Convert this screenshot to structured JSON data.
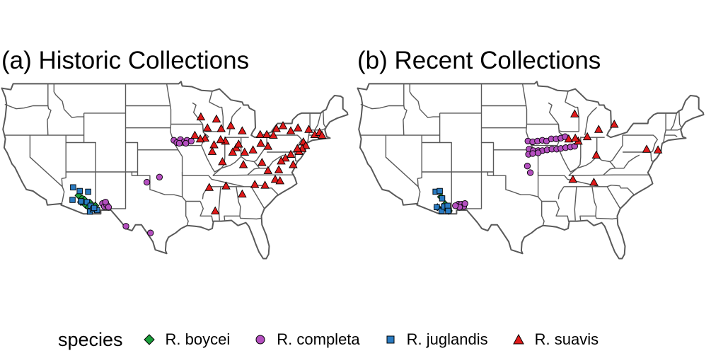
{
  "panels": [
    {
      "title": "(a) Historic Collections"
    },
    {
      "title": "(b) Recent Collections"
    }
  ],
  "legend": {
    "title": "species",
    "items": [
      {
        "label": "R. boycei",
        "shape": "diamond",
        "color": "#1a9e3a"
      },
      {
        "label": "R. completa",
        "shape": "circle",
        "color": "#b44fbf"
      },
      {
        "label": "R. juglandis",
        "shape": "square",
        "color": "#2a7bc2"
      },
      {
        "label": "R. suavis",
        "shape": "triangle",
        "color": "#e01a1a"
      }
    ]
  },
  "map_style": {
    "land": "#ffffff",
    "border": "#595959"
  },
  "chart_data": [
    {
      "type": "scatter",
      "title": "(a) Historic Collections",
      "xlim": [
        -125,
        -66
      ],
      "ylim": [
        24,
        50
      ],
      "series": [
        {
          "name": "R. boycei",
          "points": [
            [
              -111.9,
              33.8
            ],
            [
              -111.3,
              33.4
            ],
            [
              -110.7,
              32.5
            ],
            [
              -110.2,
              32.2
            ],
            [
              -110.0,
              32.8
            ],
            [
              -109.6,
              32.0
            ],
            [
              -111.5,
              32.9
            ],
            [
              -110.9,
              33.2
            ],
            [
              -109.1,
              32.4
            ]
          ]
        },
        {
          "name": "R. completa",
          "points": [
            [
              -96.0,
              41.3
            ],
            [
              -95.5,
              41.0
            ],
            [
              -94.9,
              41.4
            ],
            [
              -94.3,
              41.1
            ],
            [
              -93.8,
              41.3
            ],
            [
              -93.1,
              41.2
            ],
            [
              -95.1,
              40.9
            ],
            [
              -94.0,
              40.9
            ],
            [
              -107.9,
              32.7
            ],
            [
              -107.6,
              32.3
            ],
            [
              -107.2,
              32.5
            ],
            [
              -106.9,
              32.2
            ],
            [
              -107.4,
              32.9
            ],
            [
              -100.5,
              35.6
            ],
            [
              -98.4,
              36.3
            ],
            [
              -104.0,
              29.6
            ],
            [
              -99.9,
              28.7
            ]
          ]
        },
        {
          "name": "R. juglandis",
          "points": [
            [
              -112.8,
              34.9
            ],
            [
              -111.7,
              34.4
            ],
            [
              -110.3,
              34.3
            ],
            [
              -112.9,
              33.2
            ],
            [
              -111.5,
              33.0
            ],
            [
              -110.5,
              32.9
            ],
            [
              -109.9,
              32.4
            ],
            [
              -110.0,
              31.6
            ],
            [
              -109.5,
              31.9
            ],
            [
              -108.8,
              31.8
            ],
            [
              -109.3,
              32.1
            ]
          ]
        },
        {
          "name": "R. suavis",
          "points": [
            [
              -91.5,
              44.5
            ],
            [
              -90.4,
              43.0
            ],
            [
              -88.9,
              44.2
            ],
            [
              -88.1,
              42.9
            ],
            [
              -86.5,
              43.3
            ],
            [
              -84.6,
              42.6
            ],
            [
              -81.6,
              42.1
            ],
            [
              -80.5,
              42.1
            ],
            [
              -79.4,
              42.0
            ],
            [
              -78.9,
              42.9
            ],
            [
              -77.8,
              43.3
            ],
            [
              -76.5,
              42.6
            ],
            [
              -75.3,
              43.0
            ],
            [
              -73.5,
              42.8
            ],
            [
              -72.5,
              42.1
            ],
            [
              -71.7,
              42.4
            ],
            [
              -71.3,
              42.0
            ],
            [
              -74.4,
              41.1
            ],
            [
              -74.0,
              40.6
            ],
            [
              -74.6,
              40.2
            ],
            [
              -75.1,
              39.8
            ],
            [
              -75.4,
              40.2
            ],
            [
              -76.5,
              39.4
            ],
            [
              -77.4,
              38.9
            ],
            [
              -78.1,
              38.5
            ],
            [
              -76.1,
              38.0
            ],
            [
              -78.5,
              37.3
            ],
            [
              -80.3,
              40.5
            ],
            [
              -81.5,
              40.9
            ],
            [
              -82.8,
              40.0
            ],
            [
              -84.2,
              39.7
            ],
            [
              -85.6,
              40.3
            ],
            [
              -86.2,
              39.7
            ],
            [
              -87.4,
              41.2
            ],
            [
              -88.2,
              41.4
            ],
            [
              -89.3,
              40.7
            ],
            [
              -90.8,
              41.6
            ],
            [
              -91.6,
              41.5
            ],
            [
              -92.5,
              42.0
            ],
            [
              -89.6,
              39.8
            ],
            [
              -87.9,
              38.4
            ],
            [
              -84.4,
              38.0
            ],
            [
              -81.3,
              38.3
            ],
            [
              -85.2,
              40.8
            ],
            [
              -80.3,
              37.2
            ],
            [
              -79.1,
              36.0
            ],
            [
              -78.3,
              35.8
            ],
            [
              -80.8,
              35.2
            ],
            [
              -82.5,
              35.3
            ],
            [
              -84.6,
              34.0
            ],
            [
              -87.3,
              35.1
            ],
            [
              -90.1,
              34.9
            ],
            [
              -89.1,
              31.7
            ]
          ]
        }
      ]
    },
    {
      "type": "scatter",
      "title": "(b) Recent Collections",
      "xlim": [
        -125,
        -66
      ],
      "ylim": [
        24,
        50
      ],
      "series": [
        {
          "name": "R. boycei",
          "points": [
            [
              -110.8,
              33.6
            ],
            [
              -110.1,
              32.6
            ],
            [
              -111.4,
              32.2
            ],
            [
              -110.3,
              32.1
            ],
            [
              -109.5,
              31.7
            ]
          ]
        },
        {
          "name": "R. completa",
          "points": [
            [
              -96.3,
              41.2
            ],
            [
              -95.5,
              41.1
            ],
            [
              -94.7,
              41.2
            ],
            [
              -93.9,
              41.3
            ],
            [
              -93.2,
              41.2
            ],
            [
              -92.4,
              41.5
            ],
            [
              -91.6,
              41.5
            ],
            [
              -90.8,
              41.6
            ],
            [
              -90.1,
              41.8
            ],
            [
              -96.1,
              40.1
            ],
            [
              -95.4,
              39.9
            ],
            [
              -94.6,
              39.9
            ],
            [
              -93.9,
              39.9
            ],
            [
              -93.1,
              40.0
            ],
            [
              -92.3,
              40.1
            ],
            [
              -91.5,
              40.1
            ],
            [
              -90.8,
              40.2
            ],
            [
              -90.0,
              40.3
            ],
            [
              -89.2,
              40.4
            ],
            [
              -88.5,
              40.5
            ],
            [
              -96.2,
              39.4
            ],
            [
              -95.5,
              39.5
            ],
            [
              -94.6,
              39.6
            ],
            [
              -96.4,
              37.8
            ],
            [
              -95.9,
              36.9
            ],
            [
              -107.9,
              32.6
            ],
            [
              -107.4,
              32.6
            ],
            [
              -107.0,
              32.3
            ],
            [
              -107.7,
              32.2
            ],
            [
              -106.8,
              32.7
            ],
            [
              -108.4,
              32.4
            ]
          ]
        },
        {
          "name": "R. juglandis",
          "points": [
            [
              -111.7,
              34.3
            ],
            [
              -111.0,
              34.4
            ],
            [
              -110.6,
              33.4
            ],
            [
              -111.5,
              32.2
            ],
            [
              -110.7,
              31.7
            ],
            [
              -110.3,
              32.3
            ],
            [
              -109.7,
              32.4
            ],
            [
              -109.6,
              31.7
            ]
          ]
        },
        {
          "name": "R. suavis",
          "points": [
            [
              -88.5,
              44.9
            ],
            [
              -89.5,
              41.5
            ],
            [
              -86.4,
              41.8
            ],
            [
              -84.5,
              42.8
            ],
            [
              -81.9,
              43.5
            ],
            [
              -84.9,
              39.3
            ],
            [
              -76.5,
              40.1
            ],
            [
              -74.6,
              40.0
            ],
            [
              -88.8,
              36.0
            ],
            [
              -85.3,
              35.6
            ],
            [
              -87.9,
              41.2
            ],
            [
              -88.4,
              41.6
            ]
          ]
        }
      ]
    }
  ]
}
